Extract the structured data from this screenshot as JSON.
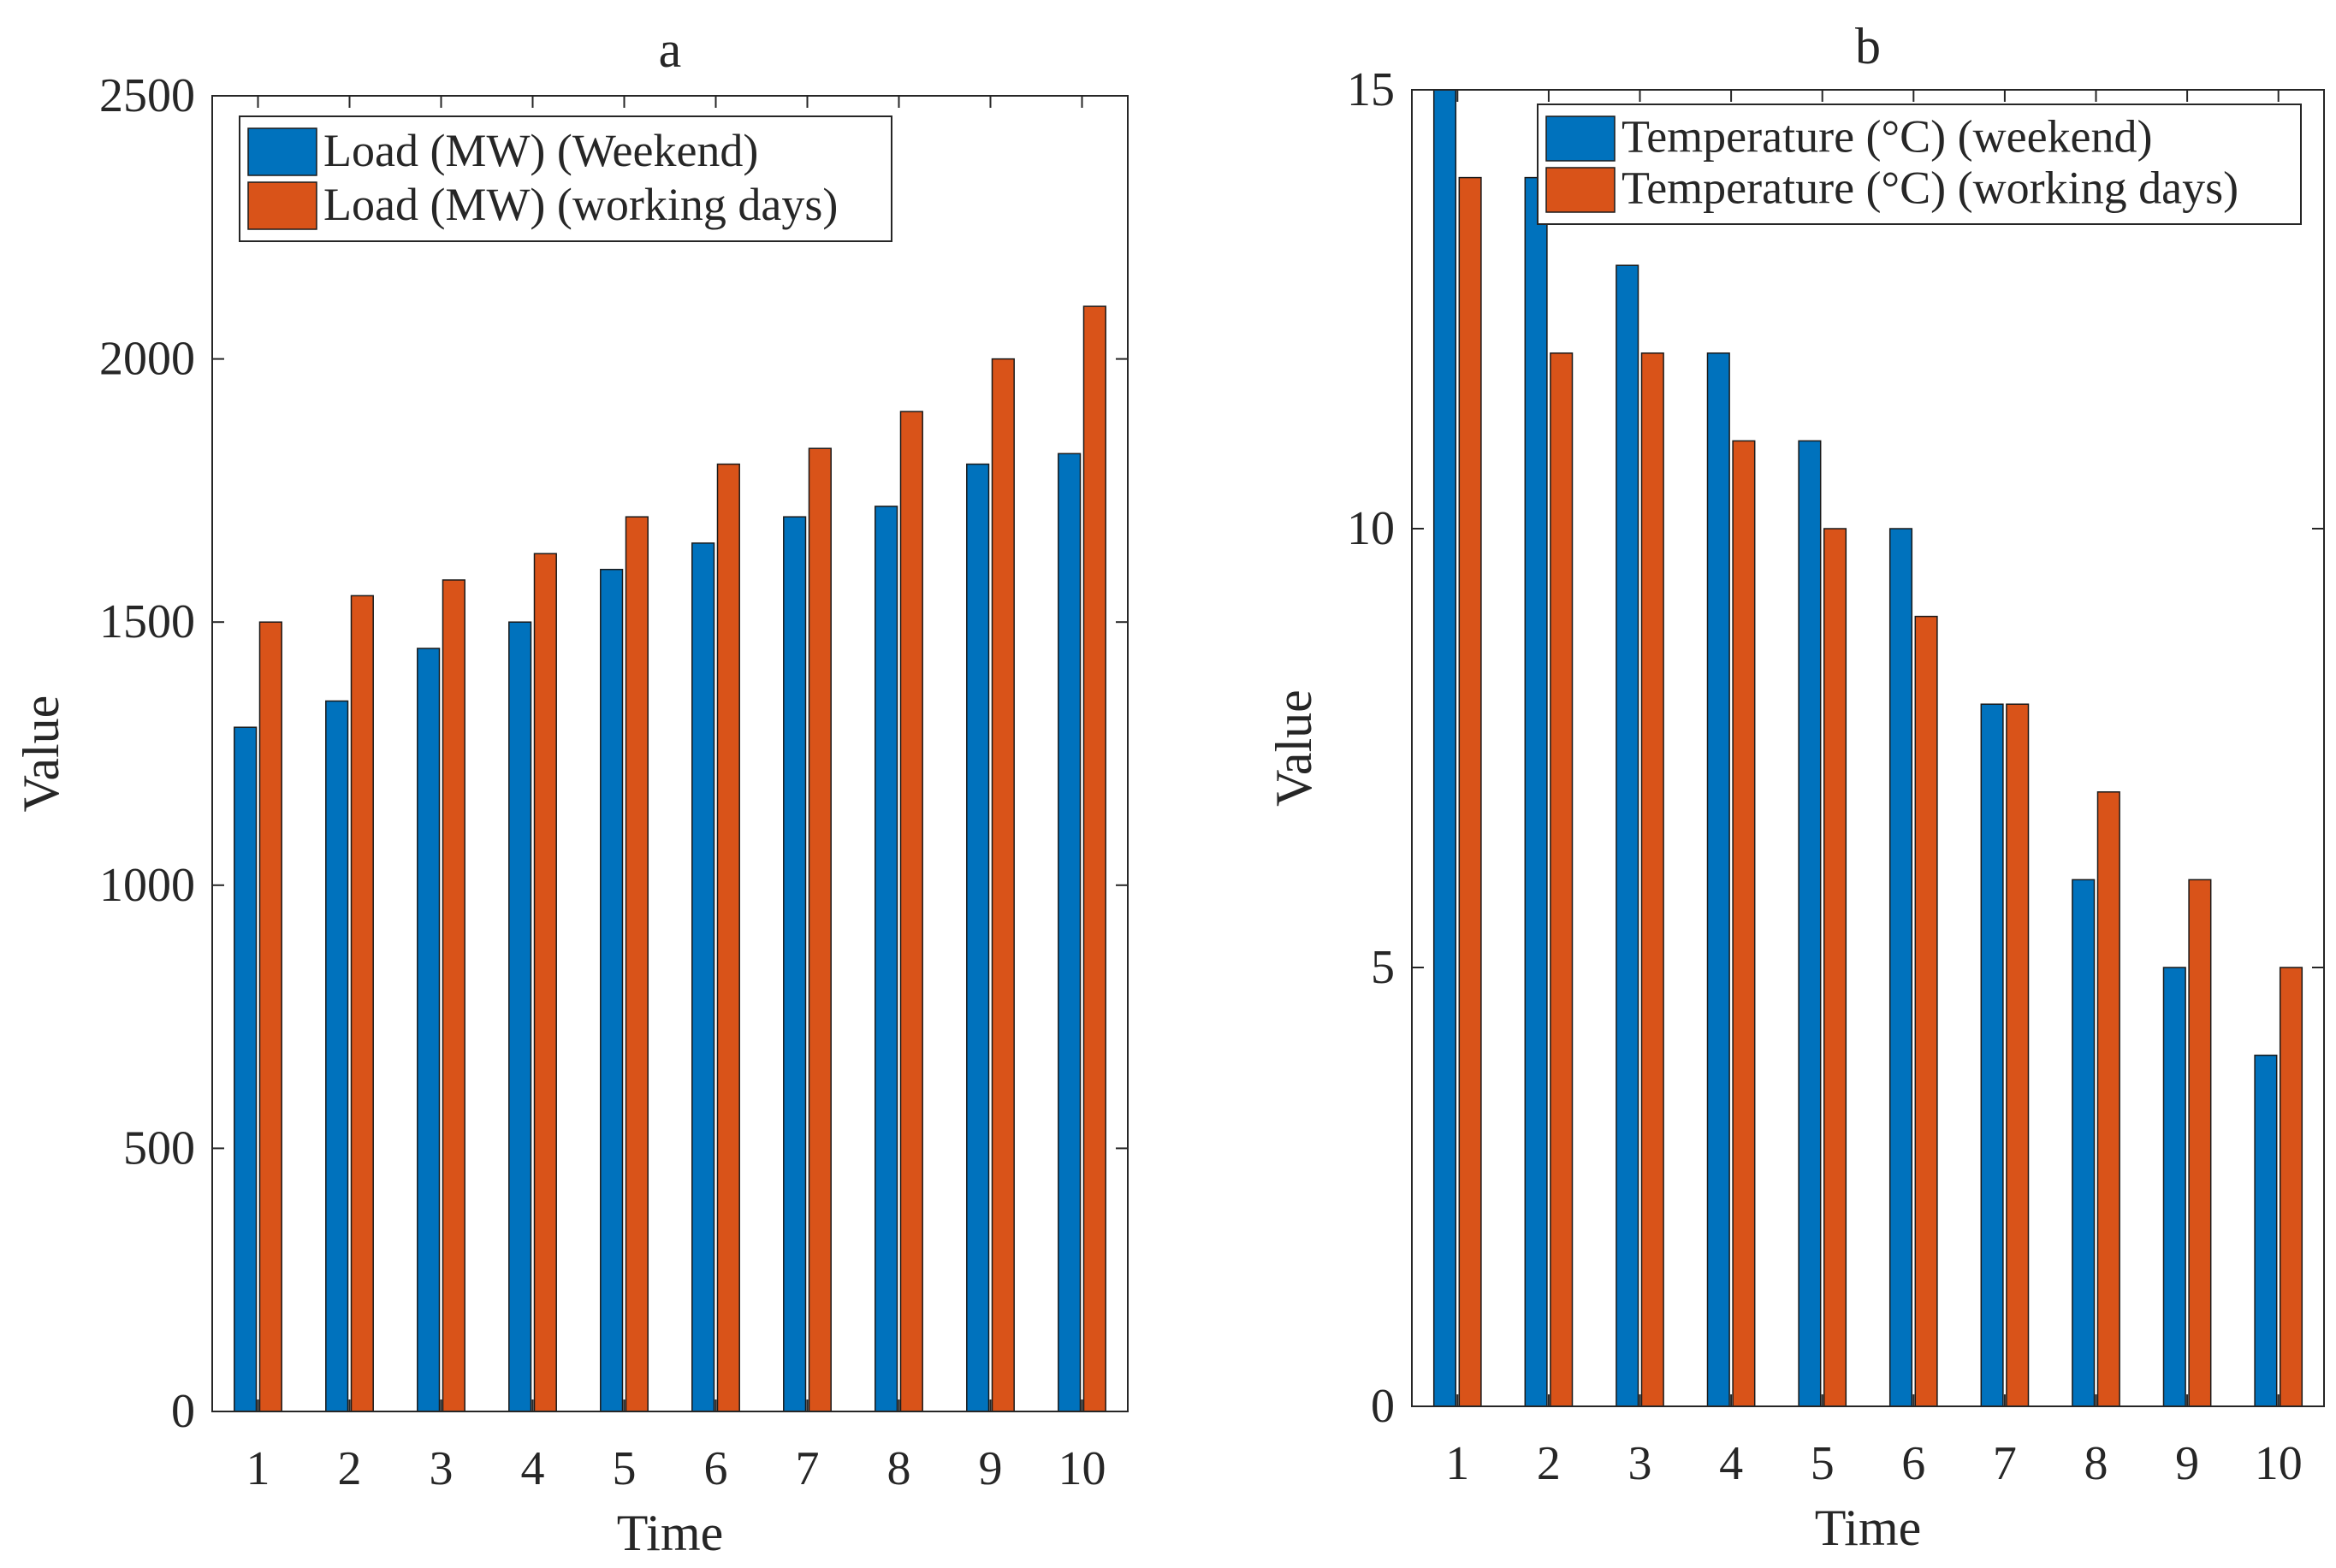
{
  "chart_data": [
    {
      "type": "bar",
      "title": "a",
      "xlabel": "Time",
      "ylabel": "Value",
      "categories": [
        "1",
        "2",
        "3",
        "4",
        "5",
        "6",
        "7",
        "8",
        "9",
        "10"
      ],
      "ylim": [
        0,
        2500
      ],
      "yticks": [
        0,
        500,
        1000,
        1500,
        2000,
        2500
      ],
      "legend_position": "top-left",
      "series": [
        {
          "name": "Load (MW) (Weekend)",
          "color": "#0072BD",
          "values": [
            1300,
            1350,
            1450,
            1500,
            1600,
            1650,
            1700,
            1720,
            1800,
            1820
          ]
        },
        {
          "name": "Load (MW) (working days)",
          "color": "#D95319",
          "values": [
            1500,
            1550,
            1580,
            1630,
            1700,
            1800,
            1830,
            1900,
            2000,
            2100
          ]
        }
      ]
    },
    {
      "type": "bar",
      "title": "b",
      "xlabel": "Time",
      "ylabel": "Value",
      "categories": [
        "1",
        "2",
        "3",
        "4",
        "5",
        "6",
        "7",
        "8",
        "9",
        "10"
      ],
      "ylim": [
        0,
        15
      ],
      "yticks": [
        0,
        5,
        10,
        15
      ],
      "legend_position": "top-right",
      "series": [
        {
          "name": "Temperature (°C) (weekend)",
          "color": "#0072BD",
          "values": [
            15,
            14,
            13,
            12,
            11,
            10,
            8,
            6,
            5,
            4
          ]
        },
        {
          "name": "Temperature (°C) (working days)",
          "color": "#D95319",
          "values": [
            14,
            12,
            12,
            11,
            10,
            9,
            8,
            7,
            6,
            5
          ]
        }
      ]
    }
  ]
}
